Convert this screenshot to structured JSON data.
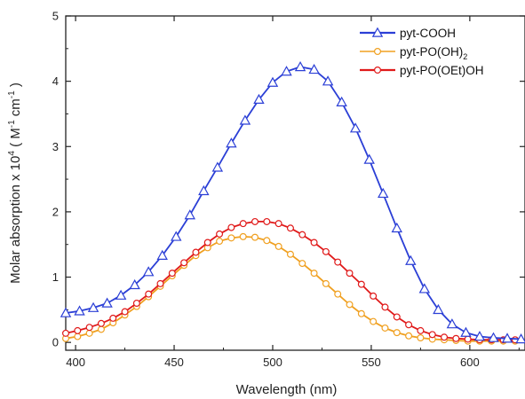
{
  "chart_data": {
    "type": "line",
    "title": "",
    "xlabel": "Wavelength (nm)",
    "ylabel_main": "Molar absorption x 10",
    "ylabel_exp": "4",
    "ylabel_unit_open": " ( M",
    "ylabel_unit_exp1": "-1",
    "ylabel_unit_mid": " cm",
    "ylabel_unit_exp2": "-1",
    "ylabel_unit_close": " )",
    "xlim": [
      395,
      628
    ],
    "ylim": [
      -0.12,
      5.0
    ],
    "x_ticks": [
      400,
      450,
      500,
      550,
      600
    ],
    "y_ticks": [
      0,
      1,
      2,
      3,
      4,
      5
    ],
    "grid": false,
    "legend_position": "top-right",
    "series": [
      {
        "name": "pyt-COOH",
        "name_sub": "",
        "color": "#2b3fd6",
        "marker": "triangle",
        "x": [
          395,
          402,
          409,
          416,
          423,
          430,
          437,
          444,
          451,
          458,
          465,
          472,
          479,
          486,
          493,
          500,
          507,
          514,
          521,
          528,
          535,
          542,
          549,
          556,
          563,
          570,
          577,
          584,
          591,
          598,
          605,
          612,
          619,
          626
        ],
        "y": [
          0.45,
          0.48,
          0.53,
          0.6,
          0.72,
          0.88,
          1.08,
          1.33,
          1.62,
          1.95,
          2.32,
          2.68,
          3.05,
          3.4,
          3.72,
          3.98,
          4.15,
          4.22,
          4.18,
          4.0,
          3.68,
          3.28,
          2.8,
          2.28,
          1.75,
          1.25,
          0.82,
          0.5,
          0.28,
          0.15,
          0.09,
          0.07,
          0.06,
          0.05
        ]
      },
      {
        "name": "pyt-PO(OH)",
        "name_sub": "2",
        "color": "#f0a020",
        "marker": "circle",
        "x": [
          395,
          401,
          407,
          413,
          419,
          425,
          431,
          437,
          443,
          449,
          455,
          461,
          467,
          473,
          479,
          485,
          491,
          497,
          503,
          509,
          515,
          521,
          527,
          533,
          539,
          545,
          551,
          557,
          563,
          569,
          575,
          581,
          587,
          593,
          599,
          605,
          611,
          617,
          623
        ],
        "y": [
          0.06,
          0.09,
          0.14,
          0.2,
          0.3,
          0.42,
          0.55,
          0.7,
          0.86,
          1.02,
          1.18,
          1.33,
          1.45,
          1.55,
          1.6,
          1.62,
          1.61,
          1.56,
          1.47,
          1.35,
          1.21,
          1.06,
          0.9,
          0.74,
          0.58,
          0.44,
          0.32,
          0.22,
          0.15,
          0.1,
          0.07,
          0.05,
          0.04,
          0.03,
          0.02,
          0.02,
          0.02,
          0.02,
          0.02
        ]
      },
      {
        "name": "pyt-PO(OEt)OH",
        "name_sub": "",
        "color": "#e01a1a",
        "marker": "circle",
        "x": [
          395,
          401,
          407,
          413,
          419,
          425,
          431,
          437,
          443,
          449,
          455,
          461,
          467,
          473,
          479,
          485,
          491,
          497,
          503,
          509,
          515,
          521,
          527,
          533,
          539,
          545,
          551,
          557,
          563,
          569,
          575,
          581,
          587,
          593,
          599,
          605,
          611,
          617,
          623
        ],
        "y": [
          0.14,
          0.18,
          0.23,
          0.29,
          0.37,
          0.47,
          0.6,
          0.74,
          0.9,
          1.06,
          1.22,
          1.38,
          1.53,
          1.66,
          1.76,
          1.82,
          1.85,
          1.85,
          1.82,
          1.75,
          1.65,
          1.53,
          1.39,
          1.23,
          1.06,
          0.89,
          0.71,
          0.54,
          0.39,
          0.27,
          0.18,
          0.12,
          0.08,
          0.06,
          0.05,
          0.04,
          0.04,
          0.04,
          0.04
        ]
      }
    ]
  }
}
